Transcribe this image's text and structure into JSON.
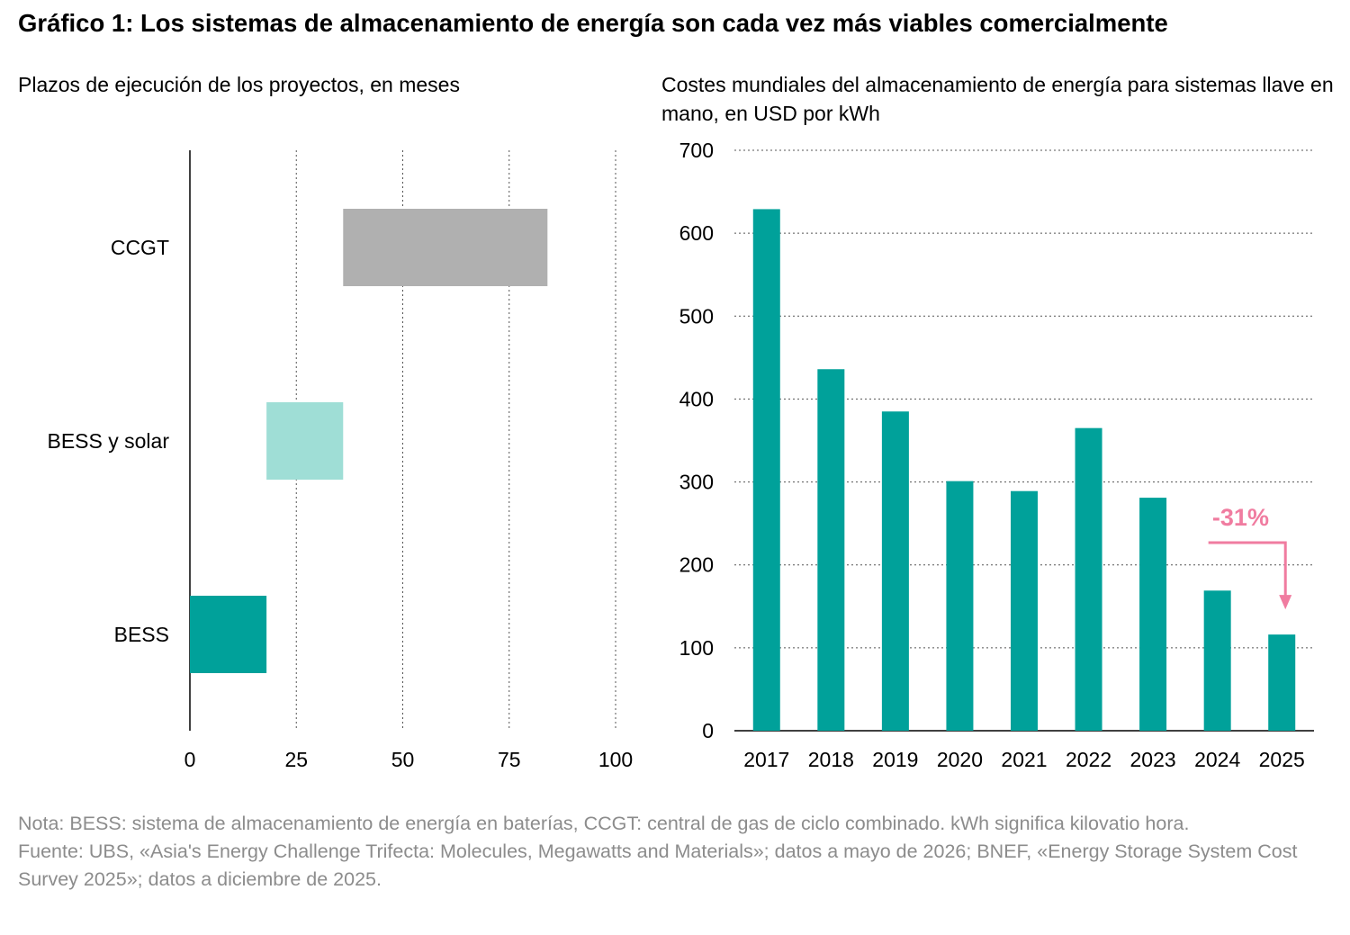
{
  "title": "Gráfico 1: Los sistemas de almacenamiento de energía son cada vez más viables comercialmente",
  "chart_data": [
    {
      "type": "bar",
      "orientation": "horizontal-range",
      "title": "Plazos de ejecución de los proyectos, en meses",
      "categories": [
        "CCGT",
        "BESS y solar",
        "BESS"
      ],
      "ranges": [
        [
          36,
          84
        ],
        [
          18,
          36
        ],
        [
          0,
          18
        ]
      ],
      "colors": [
        "#b0b0b0",
        "#9fded6",
        "#00a19a"
      ],
      "xlim": [
        0,
        100
      ],
      "xticks": [
        "0",
        "25",
        "50",
        "75",
        "100"
      ],
      "grid": "vertical dotted"
    },
    {
      "type": "bar",
      "title": "Costes mundiales del almacenamiento de energía para sistemas llave en mano, en USD por kWh",
      "categories": [
        "2017",
        "2018",
        "2019",
        "2020",
        "2021",
        "2022",
        "2023",
        "2024",
        "2025"
      ],
      "values": [
        629,
        436,
        385,
        301,
        289,
        365,
        281,
        169,
        116
      ],
      "color": "#00a19a",
      "ylim": [
        0,
        700
      ],
      "yticks": [
        "0",
        "100",
        "200",
        "300",
        "400",
        "500",
        "600",
        "700"
      ],
      "grid": "horizontal dotted",
      "annotation": {
        "text": "-31%",
        "from": "2024",
        "to": "2025",
        "color": "#f07ca0"
      }
    }
  ],
  "notes": {
    "nota": "Nota: BESS: sistema de almacenamiento de energía en baterías, CCGT: central de gas de ciclo combinado. kWh significa kilovatio hora.",
    "fuente": "Fuente: UBS, «Asia's Energy Challenge Trifecta: Molecules, Megawatts and Materials»; datos a mayo de 2026; BNEF, «Energy Storage System Cost Survey 2025»; datos a diciembre de 2025."
  }
}
